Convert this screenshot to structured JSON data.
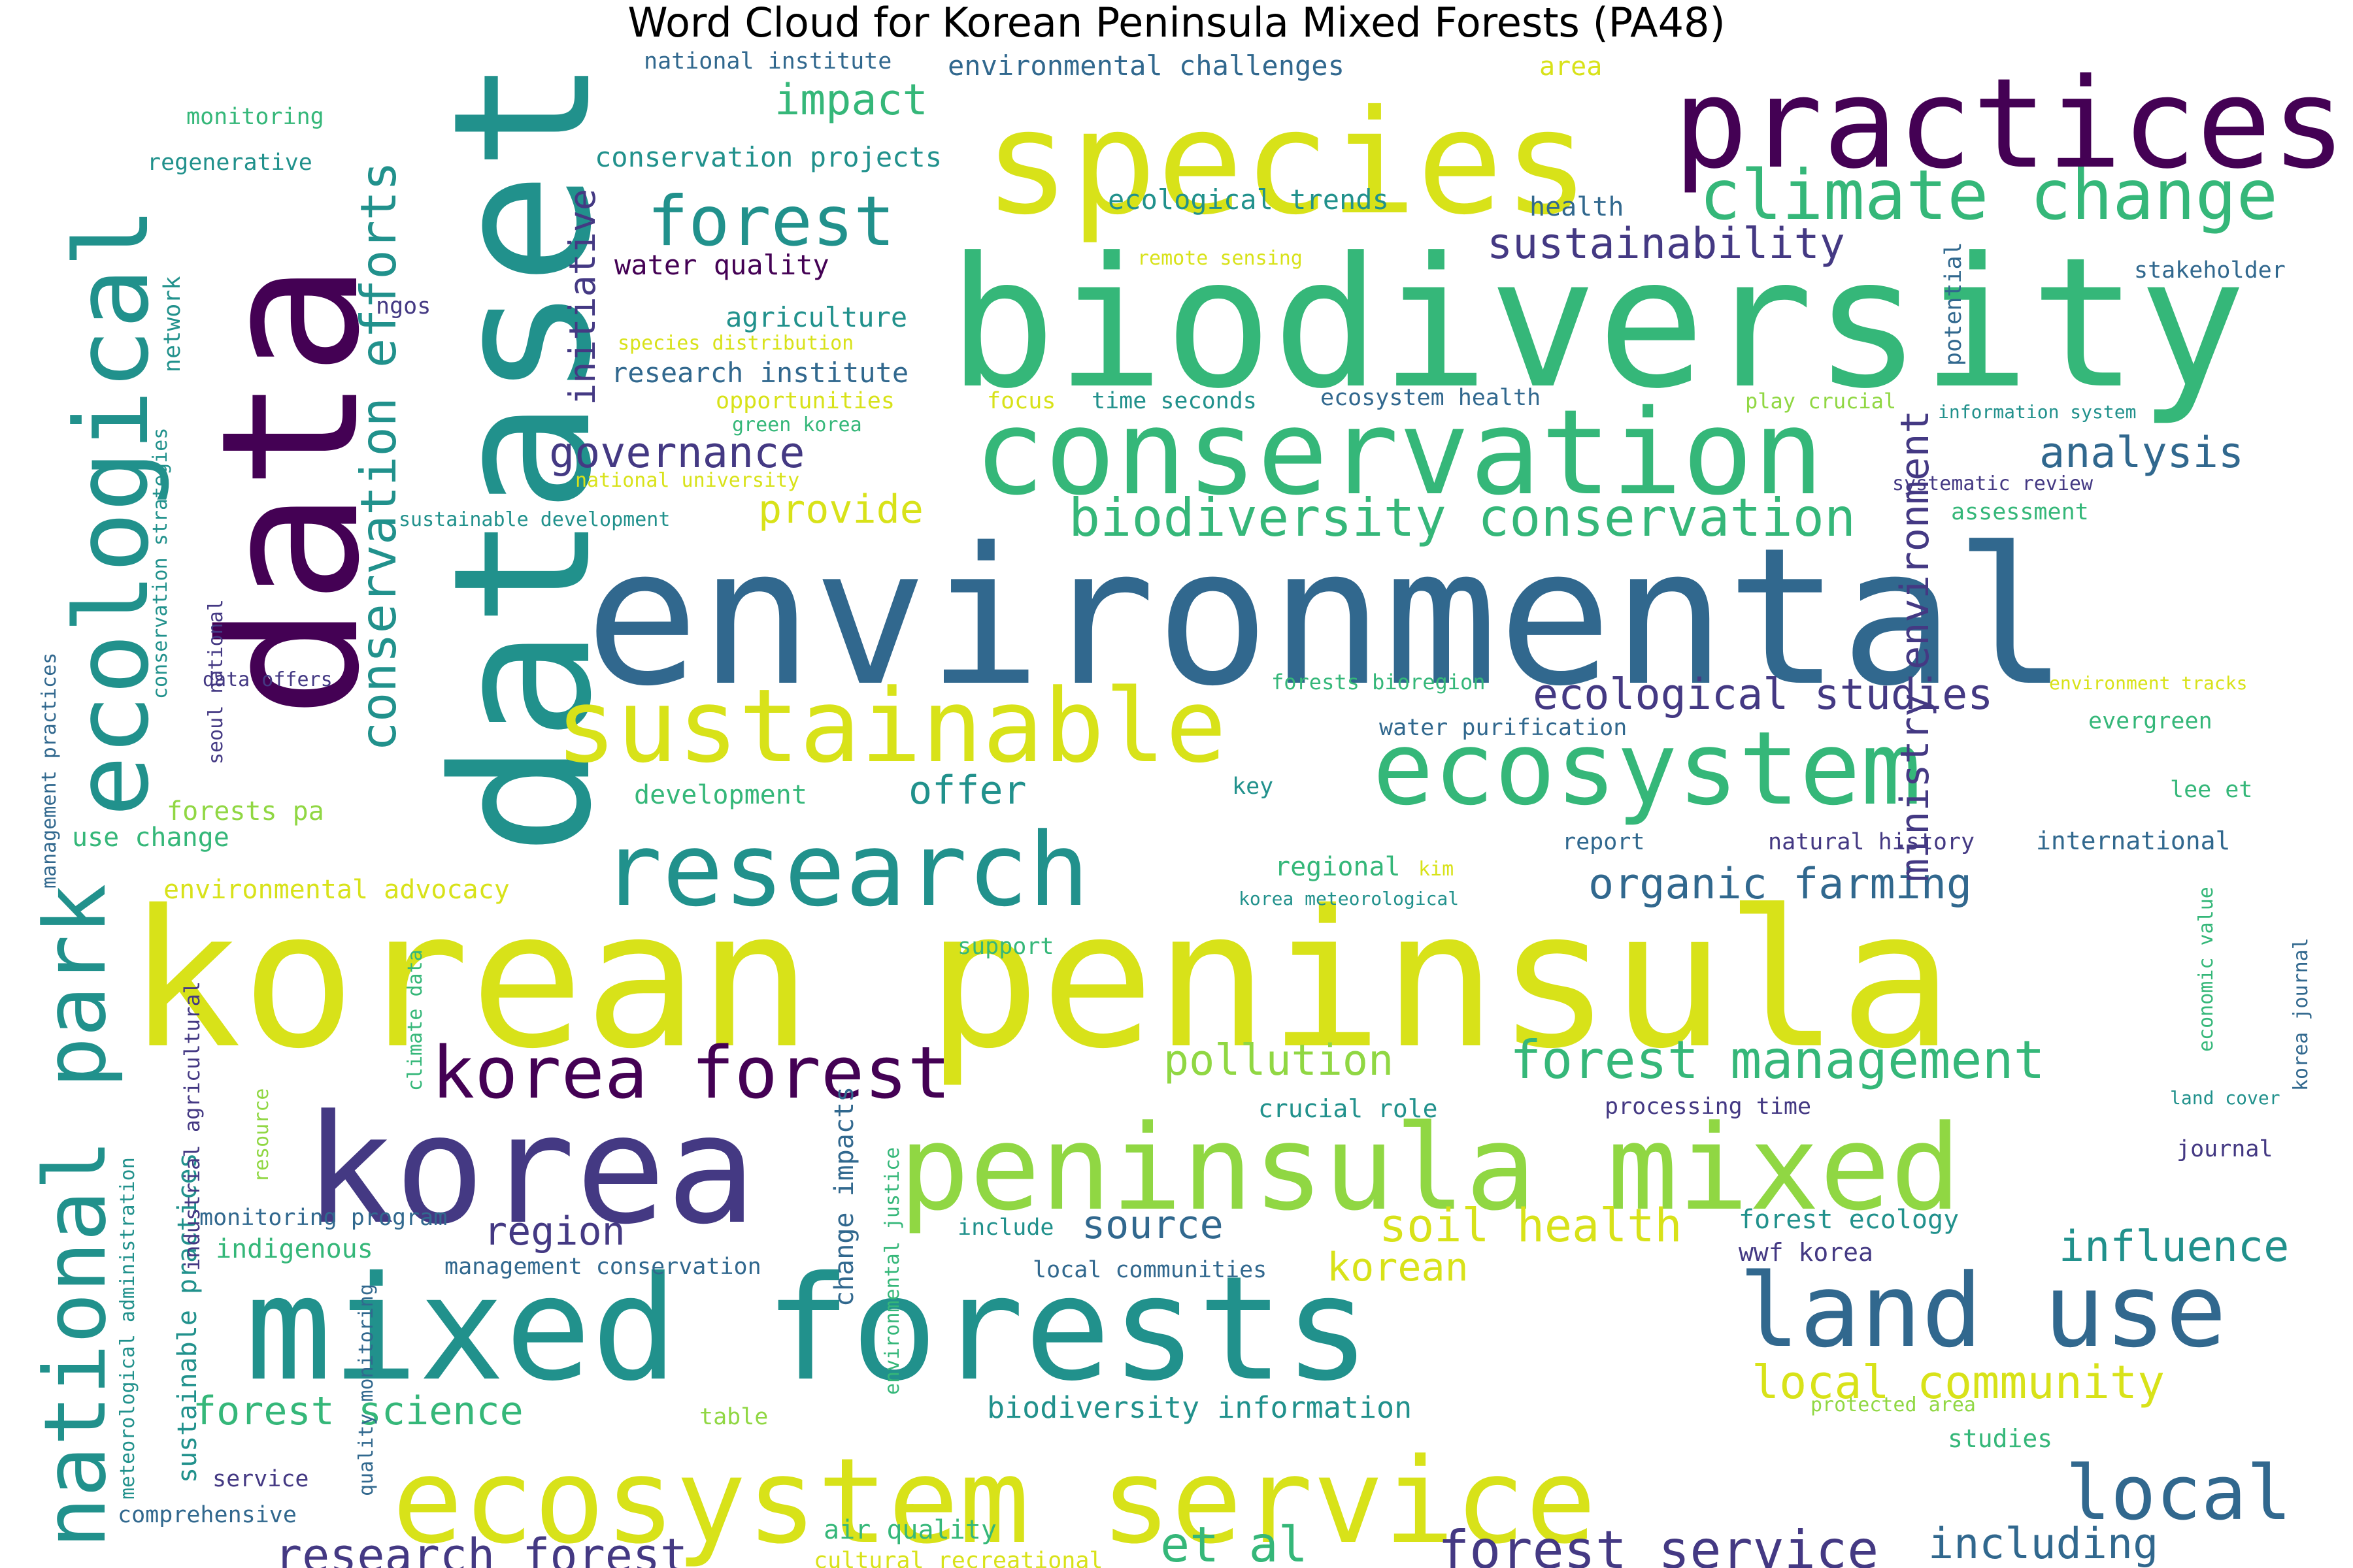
{
  "title": "Word Cloud for Korean Peninsula Mixed Forests (PA48)",
  "colors": {
    "v0": "#440154",
    "v1": "#443983",
    "v2": "#31688e",
    "v3": "#21918c",
    "v4": "#35b779",
    "v5": "#90d743",
    "v6": "#fde725",
    "v7": "#d8e219",
    "v8": "#5ec962"
  },
  "words": [
    {
      "text": "korean peninsula",
      "color": "v7"
    },
    {
      "text": "environmental",
      "color": "v2"
    },
    {
      "text": "biodiversity",
      "color": "v4"
    },
    {
      "text": "data",
      "color": "v0"
    },
    {
      "text": "dataset",
      "color": "v3"
    },
    {
      "text": "species",
      "color": "v7"
    },
    {
      "text": "practices",
      "color": "v0"
    },
    {
      "text": "conservation",
      "color": "v4"
    },
    {
      "text": "mixed forests",
      "color": "v3"
    },
    {
      "text": "ecosystem service",
      "color": "v7"
    },
    {
      "text": "korea",
      "color": "v1"
    },
    {
      "text": "peninsula mixed",
      "color": "v5"
    },
    {
      "text": "sustainable",
      "color": "v7"
    },
    {
      "text": "ecosystem",
      "color": "v4"
    },
    {
      "text": "research",
      "color": "v3"
    },
    {
      "text": "ecological",
      "color": "v3"
    },
    {
      "text": "national park",
      "color": "v3"
    },
    {
      "text": "land use",
      "color": "v2"
    },
    {
      "text": "korea forest",
      "color": "v0"
    },
    {
      "text": "climate change",
      "color": "v4"
    },
    {
      "text": "forest",
      "color": "v3"
    },
    {
      "text": "local",
      "color": "v2"
    },
    {
      "text": "forest management",
      "color": "v4"
    },
    {
      "text": "biodiversity conservation",
      "color": "v4"
    },
    {
      "text": "conservation efforts",
      "color": "v3"
    },
    {
      "text": "ecological studies",
      "color": "v1"
    },
    {
      "text": "organic farming",
      "color": "v2"
    },
    {
      "text": "ministry environment",
      "color": "v1"
    },
    {
      "text": "forest service",
      "color": "v1"
    },
    {
      "text": "research forest",
      "color": "v1"
    },
    {
      "text": "local community",
      "color": "v7"
    },
    {
      "text": "soil health",
      "color": "v7"
    },
    {
      "text": "influence",
      "color": "v3"
    },
    {
      "text": "sustainability",
      "color": "v1"
    },
    {
      "text": "analysis",
      "color": "v2"
    },
    {
      "text": "governance",
      "color": "v1"
    },
    {
      "text": "impact",
      "color": "v4"
    },
    {
      "text": "initiative",
      "color": "v1"
    },
    {
      "text": "et al",
      "color": "v4"
    },
    {
      "text": "including",
      "color": "v2"
    },
    {
      "text": "pollution",
      "color": "v5"
    },
    {
      "text": "region",
      "color": "v1"
    },
    {
      "text": "offer",
      "color": "v3"
    },
    {
      "text": "source",
      "color": "v2"
    },
    {
      "text": "korean",
      "color": "v7"
    },
    {
      "text": "provide",
      "color": "v7"
    },
    {
      "text": "forest science",
      "color": "v4"
    },
    {
      "text": "biodiversity information",
      "color": "v3"
    },
    {
      "text": "sustainable practices",
      "color": "v3"
    },
    {
      "text": "environmental challenges",
      "color": "v2"
    },
    {
      "text": "conservation projects",
      "color": "v3"
    },
    {
      "text": "ecological trends",
      "color": "v3"
    },
    {
      "text": "water quality",
      "color": "v0"
    },
    {
      "text": "agriculture",
      "color": "v3"
    },
    {
      "text": "research institute",
      "color": "v2"
    },
    {
      "text": "monitoring",
      "color": "v4"
    },
    {
      "text": "regenerative",
      "color": "v3"
    },
    {
      "text": "national institute",
      "color": "v2"
    },
    {
      "text": "area",
      "color": "v7"
    },
    {
      "text": "health",
      "color": "v2"
    },
    {
      "text": "stakeholder",
      "color": "v2"
    },
    {
      "text": "potential",
      "color": "v2"
    },
    {
      "text": "remote sensing",
      "color": "v7"
    },
    {
      "text": "network",
      "color": "v3"
    },
    {
      "text": "ngos",
      "color": "v1"
    },
    {
      "text": "species distribution",
      "color": "v7"
    },
    {
      "text": "opportunities",
      "color": "v7"
    },
    {
      "text": "green korea",
      "color": "v4"
    },
    {
      "text": "focus",
      "color": "v7"
    },
    {
      "text": "time seconds",
      "color": "v3"
    },
    {
      "text": "ecosystem health",
      "color": "v2"
    },
    {
      "text": "play crucial",
      "color": "v5"
    },
    {
      "text": "information system",
      "color": "v3"
    },
    {
      "text": "national university",
      "color": "v7"
    },
    {
      "text": "systematic review",
      "color": "v1"
    },
    {
      "text": "sustainable development",
      "color": "v3"
    },
    {
      "text": "assessment",
      "color": "v4"
    },
    {
      "text": "conservation strategies",
      "color": "v3"
    },
    {
      "text": "management practices",
      "color": "v2"
    },
    {
      "text": "seoul national",
      "color": "v1"
    },
    {
      "text": "data offers",
      "color": "v1"
    },
    {
      "text": "forests bioregion",
      "color": "v4"
    },
    {
      "text": "environment tracks",
      "color": "v7"
    },
    {
      "text": "evergreen",
      "color": "v4"
    },
    {
      "text": "water purification",
      "color": "v2"
    },
    {
      "text": "forests pa",
      "color": "v5"
    },
    {
      "text": "development",
      "color": "v4"
    },
    {
      "text": "key",
      "color": "v3"
    },
    {
      "text": "lee et",
      "color": "v4"
    },
    {
      "text": "use change",
      "color": "v4"
    },
    {
      "text": "report",
      "color": "v2"
    },
    {
      "text": "natural history",
      "color": "v1"
    },
    {
      "text": "international",
      "color": "v2"
    },
    {
      "text": "environmental advocacy",
      "color": "v7"
    },
    {
      "text": "regional",
      "color": "v4"
    },
    {
      "text": "kim",
      "color": "v7"
    },
    {
      "text": "korea meteorological",
      "color": "v3"
    },
    {
      "text": "support",
      "color": "v4"
    },
    {
      "text": "economic value",
      "color": "v4"
    },
    {
      "text": "korea journal",
      "color": "v2"
    },
    {
      "text": "climate data",
      "color": "v4"
    },
    {
      "text": "industrial agricultural",
      "color": "v1"
    },
    {
      "text": "resource",
      "color": "v5"
    },
    {
      "text": "crucial role",
      "color": "v3"
    },
    {
      "text": "processing time",
      "color": "v1"
    },
    {
      "text": "land cover",
      "color": "v3"
    },
    {
      "text": "journal",
      "color": "v1"
    },
    {
      "text": "monitoring program",
      "color": "v2"
    },
    {
      "text": "include",
      "color": "v3"
    },
    {
      "text": "forest ecology",
      "color": "v3"
    },
    {
      "text": "indigenous",
      "color": "v4"
    },
    {
      "text": "management conservation",
      "color": "v2"
    },
    {
      "text": "local communities",
      "color": "v2"
    },
    {
      "text": "wwf korea",
      "color": "v1"
    },
    {
      "text": "change impacts",
      "color": "v2"
    },
    {
      "text": "environmental justice",
      "color": "v4"
    },
    {
      "text": "meteorological administration",
      "color": "v3"
    },
    {
      "text": "quality monitoring",
      "color": "v2"
    },
    {
      "text": "table",
      "color": "v5"
    },
    {
      "text": "protected area",
      "color": "v5"
    },
    {
      "text": "studies",
      "color": "v4"
    },
    {
      "text": "service",
      "color": "v1"
    },
    {
      "text": "comprehensive",
      "color": "v2"
    },
    {
      "text": "air quality",
      "color": "v4"
    },
    {
      "text": "cultural recreational",
      "color": "v7"
    }
  ]
}
